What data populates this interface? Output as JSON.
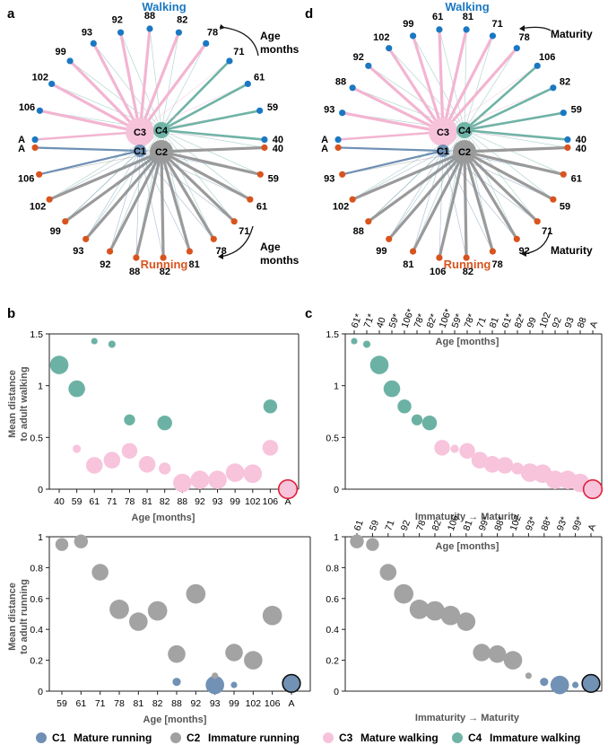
{
  "panel_letters": {
    "a": "a",
    "b": "b",
    "c": "c",
    "d": "d"
  },
  "network_common": {
    "walking_label": "Walking",
    "running_label": "Running",
    "cluster_labels": [
      "C1",
      "C2",
      "C3",
      "C4"
    ],
    "walking_color": "#1a78c2",
    "running_color": "#d9531e"
  },
  "networks": [
    {
      "id": "a",
      "arrow_top": [
        "Age",
        "months"
      ],
      "arrow_bottom": [
        "Age",
        "months"
      ],
      "walking_nodes": [
        "A",
        "106",
        "102",
        "99",
        "93",
        "92",
        "88",
        "82",
        "78",
        "71",
        "61",
        "59",
        "40"
      ],
      "running_nodes": [
        "A",
        "106",
        "102",
        "99",
        "93",
        "92",
        "88",
        "82",
        "81",
        "78",
        "71",
        "61",
        "59",
        "40"
      ]
    },
    {
      "id": "d",
      "arrow_top": [
        "Maturity"
      ],
      "arrow_bottom": [
        "Maturity"
      ],
      "walking_nodes": [
        "A",
        "93",
        "88",
        "92",
        "102",
        "99",
        "61",
        "81",
        "71",
        "78",
        "106",
        "82",
        "59",
        "40"
      ],
      "running_nodes": [
        "A",
        "93",
        "102",
        "88",
        "99",
        "81",
        "106",
        "82",
        "78",
        "92",
        "71",
        "59",
        "61",
        "40"
      ]
    }
  ],
  "chart_data": [
    {
      "id": "b-top",
      "type": "scatter",
      "xlabel": "Age [months]",
      "ylabel": [
        "Mean distance",
        "to adult walking"
      ],
      "categories": [
        "40",
        "59",
        "61",
        "71",
        "78",
        "81",
        "82",
        "88",
        "92",
        "93",
        "99",
        "102",
        "106",
        "A"
      ],
      "ylim": [
        0,
        1.5
      ],
      "yticks": [
        "0",
        "0.5",
        "1",
        "1.5"
      ],
      "series": [
        {
          "name": "C3 Mature walking",
          "points": [
            [
              "59",
              0.39,
              0.5
            ],
            [
              "61",
              0.23,
              1.4
            ],
            [
              "71",
              0.28,
              1.4
            ],
            [
              "78",
              0.37,
              1.3
            ],
            [
              "81",
              0.24,
              1.4
            ],
            [
              "82",
              0.2,
              0.9
            ],
            [
              "88",
              0.06,
              1.6
            ],
            [
              "92",
              0.09,
              1.6
            ],
            [
              "93",
              0.09,
              1.6
            ],
            [
              "99",
              0.16,
              1.6
            ],
            [
              "102",
              0.15,
              1.6
            ],
            [
              "106",
              0.4,
              1.3
            ],
            [
              "A",
              0.0,
              1.6
            ]
          ]
        },
        {
          "name": "C4 Immature walking",
          "points": [
            [
              "40",
              1.2,
              1.6
            ],
            [
              "59",
              0.97,
              1.4
            ],
            [
              "61",
              1.43,
              0.3
            ],
            [
              "71",
              1.4,
              0.4
            ],
            [
              "78",
              0.67,
              0.8
            ],
            [
              "82",
              0.64,
              1.2
            ],
            [
              "106",
              0.8,
              1.1
            ]
          ]
        }
      ]
    },
    {
      "id": "b-bottom",
      "type": "scatter",
      "xlabel": "Age [months]",
      "ylabel": [
        "Mean distance",
        "to adult running"
      ],
      "categories": [
        "59",
        "61",
        "71",
        "78",
        "81",
        "82",
        "88",
        "92",
        "93",
        "99",
        "102",
        "106",
        "A"
      ],
      "ylim": [
        0,
        1
      ],
      "yticks": [
        "0",
        "0.2",
        "0.4",
        "0.6",
        "0.8",
        "1"
      ],
      "series": [
        {
          "name": "C1 Mature running",
          "points": [
            [
              "88",
              0.06,
              0.5
            ],
            [
              "93",
              0.04,
              1.6
            ],
            [
              "99",
              0.04,
              0.3
            ],
            [
              "A",
              0.05,
              1.5
            ]
          ]
        },
        {
          "name": "C2 Immature running",
          "points": [
            [
              "59",
              0.95,
              1.0
            ],
            [
              "61",
              0.97,
              1.1
            ],
            [
              "71",
              0.77,
              1.4
            ],
            [
              "78",
              0.53,
              1.7
            ],
            [
              "81",
              0.45,
              1.6
            ],
            [
              "82",
              0.52,
              1.7
            ],
            [
              "88",
              0.24,
              1.5
            ],
            [
              "92",
              0.63,
              1.7
            ],
            [
              "93",
              0.1,
              0.3
            ],
            [
              "99",
              0.25,
              1.5
            ],
            [
              "102",
              0.2,
              1.6
            ],
            [
              "106",
              0.49,
              1.7
            ]
          ]
        }
      ]
    },
    {
      "id": "c-top",
      "type": "scatter",
      "title": "Age [months]",
      "xlabel": "Immaturity → Maturity",
      "categories": [
        "61*",
        "71*",
        "40",
        "59*",
        "106*",
        "78*",
        "82*",
        "106*",
        "59*",
        "78*",
        "71",
        "81",
        "61*",
        "82*",
        "99",
        "102",
        "92",
        "93",
        "88",
        "A"
      ],
      "ylim": [
        0,
        1.5
      ],
      "yticks": [
        "0",
        "0.5",
        "1",
        "1.5"
      ],
      "series": [
        {
          "name": "C3 Mature walking",
          "points": [
            [
              7,
              0.4,
              1.3
            ],
            [
              8,
              0.39,
              0.5
            ],
            [
              9,
              0.37,
              1.3
            ],
            [
              10,
              0.28,
              1.4
            ],
            [
              11,
              0.24,
              1.4
            ],
            [
              12,
              0.23,
              1.4
            ],
            [
              13,
              0.2,
              0.9
            ],
            [
              14,
              0.16,
              1.6
            ],
            [
              15,
              0.15,
              1.6
            ],
            [
              16,
              0.09,
              1.6
            ],
            [
              17,
              0.09,
              1.6
            ],
            [
              18,
              0.06,
              1.6
            ],
            [
              19,
              0.0,
              1.6
            ]
          ]
        },
        {
          "name": "C4 Immature walking",
          "points": [
            [
              0,
              1.43,
              0.3
            ],
            [
              1,
              1.4,
              0.4
            ],
            [
              2,
              1.2,
              1.6
            ],
            [
              3,
              0.97,
              1.4
            ],
            [
              4,
              0.8,
              1.1
            ],
            [
              5,
              0.67,
              0.8
            ],
            [
              6,
              0.64,
              1.2
            ]
          ]
        }
      ]
    },
    {
      "id": "c-bottom",
      "type": "scatter",
      "title": "Age [months]",
      "xlabel": "Immaturity → Maturity",
      "categories": [
        "61",
        "59",
        "71",
        "92",
        "78",
        "82",
        "106",
        "81",
        "99*",
        "88*",
        "102",
        "93*",
        "88*",
        "93*",
        "99*",
        "A"
      ],
      "ylim": [
        0,
        1
      ],
      "yticks": [
        "0",
        "0.2",
        "0.4",
        "0.6",
        "0.8",
        "1"
      ],
      "series": [
        {
          "name": "C1 Mature running",
          "points": [
            [
              12,
              0.06,
              0.5
            ],
            [
              13,
              0.04,
              1.6
            ],
            [
              14,
              0.04,
              0.3
            ],
            [
              15,
              0.05,
              1.5
            ]
          ]
        },
        {
          "name": "C2 Immature running",
          "points": [
            [
              0,
              0.97,
              1.1
            ],
            [
              1,
              0.95,
              1.0
            ],
            [
              2,
              0.77,
              1.4
            ],
            [
              3,
              0.63,
              1.7
            ],
            [
              4,
              0.53,
              1.7
            ],
            [
              5,
              0.52,
              1.7
            ],
            [
              6,
              0.49,
              1.7
            ],
            [
              7,
              0.45,
              1.6
            ],
            [
              8,
              0.25,
              1.5
            ],
            [
              9,
              0.24,
              1.5
            ],
            [
              10,
              0.2,
              1.6
            ],
            [
              11,
              0.1,
              0.3
            ]
          ]
        }
      ]
    }
  ],
  "legend": [
    {
      "code": "C1",
      "label": "Mature running",
      "color": "#6f8fb3"
    },
    {
      "code": "C2",
      "label": "Immature running",
      "color": "#a0a0a0"
    },
    {
      "code": "C3",
      "label": "Mature walking",
      "color": "#f6c3da"
    },
    {
      "code": "C4",
      "label": "Immature walking",
      "color": "#6fb3a6"
    }
  ],
  "adult_ring_colors": {
    "walking": "#e0203a",
    "running": "#111111"
  }
}
